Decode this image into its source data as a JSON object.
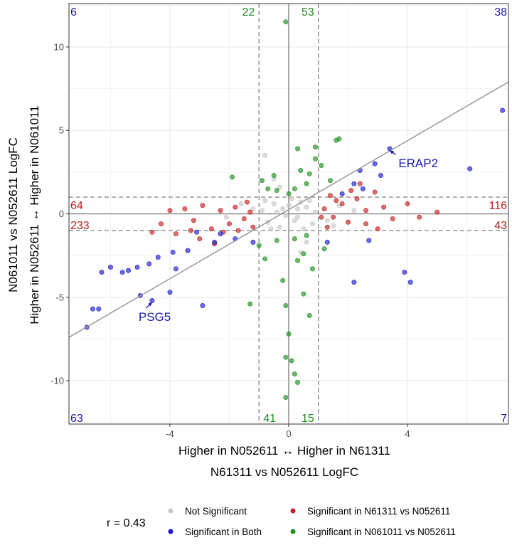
{
  "chart_data": {
    "type": "scatter",
    "xlabel": "N61311 vs N052611 LogFC",
    "ylabel": "N061011 vs N052611 LogFC",
    "x_direction_label": "Higher in N052611 ↔ Higher in N61311",
    "y_direction_label": "Higher in N052611 ↔ Higher in N061011",
    "xlim": [
      -7.4,
      7.4
    ],
    "ylim": [
      -12.6,
      12.6
    ],
    "x_ticks": [
      -4,
      0,
      4
    ],
    "y_ticks": [
      -10,
      -5,
      0,
      5,
      10
    ],
    "grid": true,
    "thresholds": {
      "x": [
        -1,
        1
      ],
      "y": [
        -1,
        1
      ]
    },
    "regression_line": {
      "x1": -7.4,
      "y1": -7.4,
      "x2": 7.4,
      "y2": 7.9
    },
    "correlation_label": "r = 0.43",
    "legend_position": "bottom",
    "colors": {
      "not_significant": "#c8c8c8",
      "significant_both": "#1a1acc",
      "significant_x": "#c41e1e",
      "significant_y": "#1f8f1f",
      "count_blue": "#1a1aaa",
      "count_red": "#b22222",
      "count_green": "#228b22"
    },
    "series": [
      {
        "name": "Not Significant",
        "color_key": "not_significant",
        "points": [
          [
            -0.2,
            0.3
          ],
          [
            0.3,
            -0.2
          ],
          [
            -0.5,
            0.6
          ],
          [
            0.6,
            0.4
          ],
          [
            -0.7,
            -0.5
          ],
          [
            0.1,
            0.9
          ],
          [
            -0.3,
            -0.8
          ],
          [
            0.8,
            -0.6
          ],
          [
            -0.9,
            0.2
          ],
          [
            0.4,
            0.7
          ],
          [
            -0.6,
            -0.9
          ],
          [
            0.9,
            0.1
          ],
          [
            0.2,
            -0.4
          ],
          [
            -0.1,
            -0.1
          ],
          [
            0.5,
            -0.9
          ],
          [
            -0.8,
            0.8
          ],
          [
            0.7,
            0.8
          ],
          [
            -0.4,
            0.1
          ],
          [
            0.0,
            0.5
          ],
          [
            0.3,
            0.3
          ],
          [
            -1.2,
            0.3
          ],
          [
            1.3,
            -0.4
          ],
          [
            -1.6,
            0.6
          ],
          [
            1.7,
            0.5
          ],
          [
            -2.1,
            -0.2
          ],
          [
            2.2,
            0.2
          ],
          [
            -0.5,
            2.1
          ],
          [
            -0.8,
            3.5
          ],
          [
            0.4,
            -2.3
          ],
          [
            -0.3,
            1.6
          ],
          [
            0.6,
            -1.7
          ],
          [
            1.5,
            -0.7
          ]
        ]
      },
      {
        "name": "Significant in N61311 vs N052611",
        "color_key": "significant_x",
        "points": [
          [
            -1.5,
            -0.3
          ],
          [
            -1.8,
            0.4
          ],
          [
            -2.0,
            -0.6
          ],
          [
            -2.3,
            0.2
          ],
          [
            -1.2,
            -0.8
          ],
          [
            -1.4,
            0.7
          ],
          [
            -2.6,
            -0.9
          ],
          [
            -2.9,
            0.5
          ],
          [
            -3.2,
            -0.4
          ],
          [
            -3.5,
            0.3
          ],
          [
            -3.8,
            -1.2
          ],
          [
            -4.0,
            0.2
          ],
          [
            -2.2,
            -1.1
          ],
          [
            -1.7,
            -1.0
          ],
          [
            -2.5,
            -1.8
          ],
          [
            -3.0,
            -1.5
          ],
          [
            -3.3,
            -1.0
          ],
          [
            -4.3,
            -0.6
          ],
          [
            -4.6,
            -1.1
          ],
          [
            -1.3,
            0.1
          ],
          [
            1.2,
            0.3
          ],
          [
            1.5,
            -0.2
          ],
          [
            1.8,
            0.6
          ],
          [
            2.0,
            -0.5
          ],
          [
            2.3,
            0.9
          ],
          [
            2.6,
            0.2
          ],
          [
            1.3,
            -0.8
          ],
          [
            1.6,
            0.8
          ],
          [
            2.9,
            1.3
          ],
          [
            3.2,
            0.4
          ],
          [
            3.5,
            -0.3
          ],
          [
            4.0,
            0.6
          ],
          [
            4.4,
            -0.2
          ],
          [
            5.0,
            0.1
          ],
          [
            1.4,
            1.1
          ],
          [
            2.1,
            1.4
          ],
          [
            2.6,
            -0.6
          ],
          [
            3.0,
            -0.9
          ],
          [
            1.1,
            -0.2
          ],
          [
            2.4,
            1.8
          ]
        ]
      },
      {
        "name": "Significant in Both",
        "color_key": "significant_both",
        "points": [
          [
            7.2,
            6.2
          ],
          [
            3.4,
            3.9
          ],
          [
            6.1,
            2.7
          ],
          [
            2.9,
            3.0
          ],
          [
            2.4,
            2.6
          ],
          [
            2.2,
            1.8
          ],
          [
            2.7,
            -1.6
          ],
          [
            3.9,
            -3.5
          ],
          [
            4.1,
            -4.1
          ],
          [
            2.2,
            -4.1
          ],
          [
            1.3,
            -1.7
          ],
          [
            -1.2,
            -1.7
          ],
          [
            -1.8,
            -1.5
          ],
          [
            -2.5,
            -1.7
          ],
          [
            -3.4,
            -2.2
          ],
          [
            -3.9,
            -2.3
          ],
          [
            -4.4,
            -2.6
          ],
          [
            -4.7,
            -3.0
          ],
          [
            -5.1,
            -3.2
          ],
          [
            -5.4,
            -3.4
          ],
          [
            -5.6,
            -3.5
          ],
          [
            -6.0,
            -3.2
          ],
          [
            -6.3,
            -3.5
          ],
          [
            -3.8,
            -3.3
          ],
          [
            -4.0,
            -4.7
          ],
          [
            -5.0,
            -4.9
          ],
          [
            -4.6,
            -5.2
          ],
          [
            -2.9,
            -5.5
          ],
          [
            -6.6,
            -5.7
          ],
          [
            -6.4,
            -5.7
          ],
          [
            -6.8,
            -6.8
          ],
          [
            -2.3,
            -1.2
          ],
          [
            -3.1,
            -1.1
          ],
          [
            1.8,
            1.2
          ],
          [
            2.5,
            1.5
          ],
          [
            3.1,
            2.3
          ]
        ]
      },
      {
        "name": "Significant in N061011 vs N052611",
        "color_key": "significant_y",
        "points": [
          [
            -0.1,
            11.5
          ],
          [
            0.3,
            3.9
          ],
          [
            0.9,
            3.3
          ],
          [
            1.6,
            4.4
          ],
          [
            1.7,
            4.5
          ],
          [
            0.9,
            4.0
          ],
          [
            1.1,
            2.9
          ],
          [
            1.4,
            2.0
          ],
          [
            0.4,
            2.6
          ],
          [
            0.7,
            2.4
          ],
          [
            0.2,
            1.5
          ],
          [
            0.6,
            1.8
          ],
          [
            -0.4,
            1.4
          ],
          [
            -0.5,
            2.3
          ],
          [
            -0.9,
            2.0
          ],
          [
            -1.9,
            2.2
          ],
          [
            -0.7,
            1.5
          ],
          [
            0.0,
            1.2
          ],
          [
            0.2,
            -1.5
          ],
          [
            -0.4,
            -1.6
          ],
          [
            0.6,
            -1.3
          ],
          [
            -1.0,
            -1.9
          ],
          [
            0.3,
            -2.8
          ],
          [
            0.8,
            -3.3
          ],
          [
            -0.2,
            -4.0
          ],
          [
            0.5,
            -4.8
          ],
          [
            -0.1,
            -5.5
          ],
          [
            0.7,
            -6.1
          ],
          [
            0.0,
            -7.2
          ],
          [
            -0.1,
            -8.6
          ],
          [
            0.1,
            -8.8
          ],
          [
            0.2,
            -9.6
          ],
          [
            0.3,
            -10.1
          ],
          [
            -0.1,
            -11.0
          ],
          [
            -1.3,
            -5.4
          ],
          [
            0.5,
            -2.4
          ],
          [
            1.2,
            -2.1
          ],
          [
            -0.8,
            -2.7
          ]
        ]
      }
    ],
    "annotations": [
      {
        "label": "ERAP2",
        "x": 3.4,
        "y": 3.8,
        "tx": 3.6,
        "ty": 3.3
      },
      {
        "label": "PSG5",
        "x": -4.6,
        "y": -5.3,
        "tx": -4.8,
        "ty": -5.9
      }
    ],
    "quadrant_counts": [
      {
        "text": "6",
        "pos": "top-left",
        "color_key": "count_blue"
      },
      {
        "text": "38",
        "pos": "top-right",
        "color_key": "count_blue"
      },
      {
        "text": "63",
        "pos": "bottom-left",
        "color_key": "count_blue"
      },
      {
        "text": "7",
        "pos": "bottom-right",
        "color_key": "count_blue"
      },
      {
        "text": "22",
        "pos": "top-center-left",
        "color_key": "count_green"
      },
      {
        "text": "53",
        "pos": "top-center-right",
        "color_key": "count_green"
      },
      {
        "text": "41",
        "pos": "bottom-center-left",
        "color_key": "count_green"
      },
      {
        "text": "15",
        "pos": "bottom-center-right",
        "color_key": "count_green"
      },
      {
        "text": "64",
        "pos": "middle-left-upper",
        "color_key": "count_red"
      },
      {
        "text": "233",
        "pos": "middle-left-lower",
        "color_key": "count_red"
      },
      {
        "text": "116",
        "pos": "middle-right-upper",
        "color_key": "count_red"
      },
      {
        "text": "43",
        "pos": "middle-right-lower",
        "color_key": "count_red"
      }
    ],
    "legend": [
      {
        "label": "Not Significant",
        "color_key": "not_significant"
      },
      {
        "label": "Significant in Both",
        "color_key": "significant_both"
      },
      {
        "label": "Significant in N61311 vs N052611",
        "color_key": "significant_x"
      },
      {
        "label": "Significant in N061011 vs N052611",
        "color_key": "significant_y"
      }
    ]
  }
}
